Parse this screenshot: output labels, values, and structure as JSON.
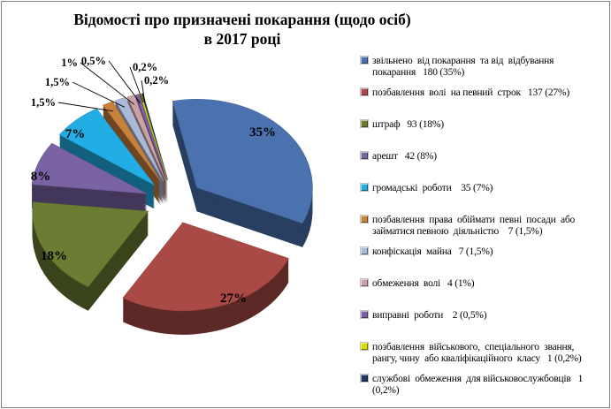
{
  "frame": {
    "border_color": "#808080",
    "background": "#FFFFFF"
  },
  "title": {
    "line1": "Відомості про призначені покарання (щодо осіб)",
    "line2": "в 2017 році"
  },
  "chart_data": {
    "type": "pie",
    "style": "3d-exploded-pie",
    "title": "Відомості про призначені покарання (щодо осіб) в 2017 році",
    "legend_position": "right",
    "start_angle_deg": -102,
    "categories": [
      "звільнено від покарання та від відбування покарання",
      "позбавлення волі на певний строк",
      "штраф",
      "арешт",
      "громадські роботи",
      "позбавлення права обіймати певні посади або займатися певною діяльністю",
      "конфіскація майна",
      "обмеження волі",
      "виправні роботи",
      "позбавлення військового, спеціального звання, рангу, чину або кваліфікаційного класу",
      "службові обмеження для військовослужбовців"
    ],
    "slices": [
      {
        "category": "звільнено від покарання та від відбування покарання",
        "count": 180,
        "value_pct": 35,
        "percent_label": "35%",
        "color": "#4B72AE",
        "legend_label": "звільнено  від покарання  та від  відбування\nпокарання   180 (35%)"
      },
      {
        "category": "позбавлення волі на певний строк",
        "count": 137,
        "value_pct": 27,
        "percent_label": "27%",
        "color": "#A94A47",
        "legend_label": "позбавлення  волі  на певний  строк   137 (27%)"
      },
      {
        "category": "штраф",
        "count": 93,
        "value_pct": 18,
        "percent_label": "18%",
        "color": "#6B7C33",
        "legend_label": "штраф   93 (18%)"
      },
      {
        "category": "арешт",
        "count": 42,
        "value_pct": 8,
        "percent_label": "8%",
        "color": "#7A63A5",
        "legend_label": "арешт   42 (8%)"
      },
      {
        "category": "громадські роботи",
        "count": 35,
        "value_pct": 7,
        "percent_label": "7%",
        "color": "#22AEE4",
        "legend_label": "громадські  роботи    35 (7%)"
      },
      {
        "category": "позбавлення права обіймати певні посади або займатися певною діяльністю",
        "count": 7,
        "value_pct": 1.5,
        "percent_label": "1,5%",
        "color": "#C8803D",
        "legend_label": "позбавлення  права  обіймати  певні  посади  або\nзайматися певною  діяльністю    7 (1,5%)"
      },
      {
        "category": "конфіскація майна",
        "count": 7,
        "value_pct": 1.5,
        "percent_label": "1,5%",
        "color": "#A9BAD9",
        "legend_label": "конфіскація  майна   7 (1,5%)"
      },
      {
        "category": "обмеження волі",
        "count": 4,
        "value_pct": 1,
        "percent_label": "1%",
        "color": "#CBA2A4",
        "legend_label": "обмеження  волі   4 (1%)"
      },
      {
        "category": "виправні роботи",
        "count": 2,
        "value_pct": 0.5,
        "percent_label": "0,5%",
        "color": "#7D60A8",
        "legend_label": "виправні  роботи    2 (0,5%)"
      },
      {
        "category": "позбавлення військового, спеціального звання, рангу, чину або кваліфікаційного класу",
        "count": 1,
        "value_pct": 0.2,
        "percent_label": "0,2%",
        "color": "#DCDC00",
        "legend_label": "позбавлення  військового,  спеціального  звання,\nрангу, чину  або кваліфікаційного  класу   1 (0,2%)"
      },
      {
        "category": "службові обмеження для військовослужбовців",
        "count": 1,
        "value_pct": 0.2,
        "percent_label": "0,2%",
        "color": "#1F3864",
        "legend_label": "службові  обмеження  для військовослужбовців   1\n(0,2%)"
      }
    ]
  }
}
